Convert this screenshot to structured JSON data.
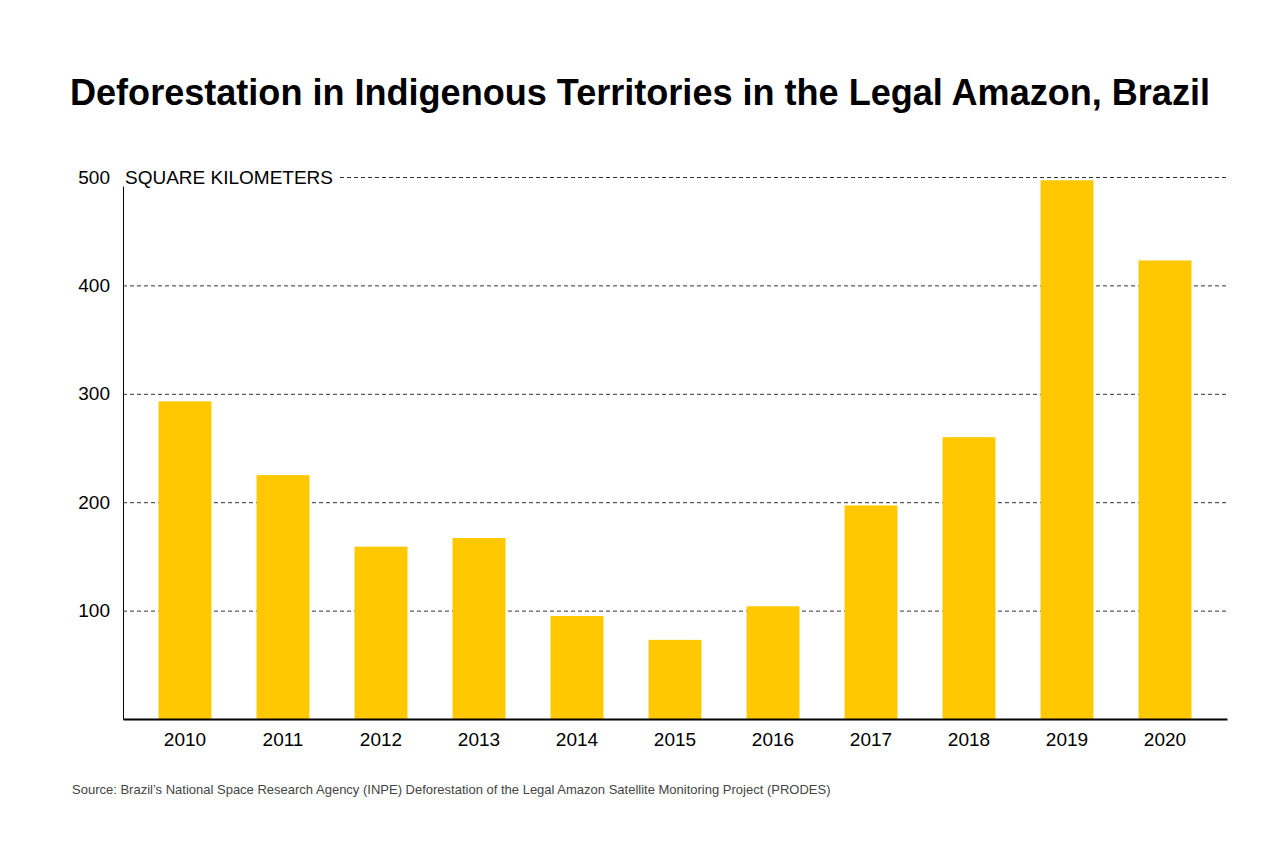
{
  "chart_data": {
    "type": "bar",
    "title": "Deforestation in Indigenous Territories in the Legal Amazon, Brazil",
    "ylabel": "SQUARE KILOMETERS",
    "source": "Source: Brazil’s National Space Research Agency (INPE) Deforestation of the Legal Amazon Satellite Monitoring Project (PRODES)",
    "categories": [
      "2010",
      "2011",
      "2012",
      "2013",
      "2014",
      "2015",
      "2016",
      "2017",
      "2018",
      "2019",
      "2020"
    ],
    "values": [
      293,
      225,
      159,
      167,
      95,
      73,
      104,
      197,
      260,
      497,
      423
    ],
    "color": "#ffc800",
    "ylim": [
      0,
      500
    ],
    "yticks": [
      100,
      200,
      300,
      400,
      500
    ],
    "grid": true
  }
}
